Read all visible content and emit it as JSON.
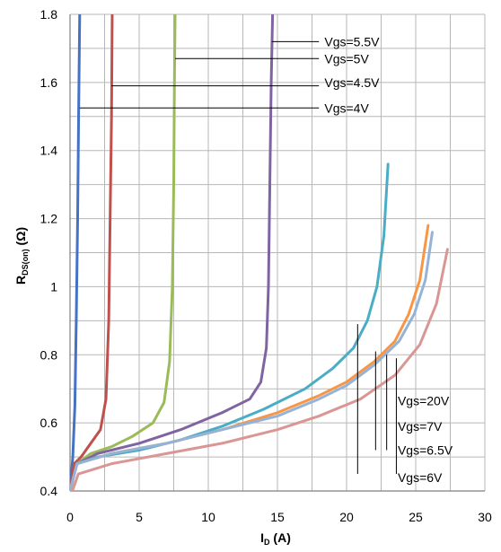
{
  "chart_data": {
    "type": "line",
    "xlabel": {
      "main": "I",
      "sub": "D",
      "suffix": " (A)"
    },
    "ylabel": {
      "main": "R",
      "sub": "DS(on)",
      "suffix": " (Ω)"
    },
    "xlim": [
      0,
      30
    ],
    "ylim": [
      0.4,
      1.8
    ],
    "x_ticks": [
      "0",
      "5",
      "10",
      "15",
      "20",
      "25",
      "30"
    ],
    "y_ticks": [
      "0.4",
      "0.6",
      "0.8",
      "1",
      "1.2",
      "1.4",
      "1.6",
      "1.8"
    ],
    "grid": true,
    "series": [
      {
        "name": "Vgs=4V",
        "color": "#4472c4",
        "points": [
          [
            0.0,
            0.4
          ],
          [
            0.2,
            0.5
          ],
          [
            0.35,
            0.65
          ],
          [
            0.45,
            0.9
          ],
          [
            0.55,
            1.2
          ],
          [
            0.62,
            1.5
          ],
          [
            0.7,
            1.8
          ]
        ]
      },
      {
        "name": "Vgs=4.5V",
        "color": "#c0504d",
        "points": [
          [
            0.0,
            0.4
          ],
          [
            0.3,
            0.48
          ],
          [
            0.8,
            0.5
          ],
          [
            1.5,
            0.54
          ],
          [
            2.2,
            0.58
          ],
          [
            2.6,
            0.67
          ],
          [
            2.8,
            0.9
          ],
          [
            2.9,
            1.2
          ],
          [
            3.0,
            1.5
          ],
          [
            3.05,
            1.8
          ]
        ]
      },
      {
        "name": "Vgs=5V",
        "color": "#9bbb59",
        "points": [
          [
            0.0,
            0.4
          ],
          [
            0.5,
            0.48
          ],
          [
            1.5,
            0.51
          ],
          [
            3.0,
            0.53
          ],
          [
            4.5,
            0.56
          ],
          [
            6.0,
            0.6
          ],
          [
            6.8,
            0.66
          ],
          [
            7.2,
            0.78
          ],
          [
            7.4,
            1.0
          ],
          [
            7.5,
            1.3
          ],
          [
            7.55,
            1.6
          ],
          [
            7.6,
            1.8
          ]
        ]
      },
      {
        "name": "Vgs=5.5V",
        "color": "#8064a2",
        "points": [
          [
            0.0,
            0.4
          ],
          [
            0.5,
            0.48
          ],
          [
            2.0,
            0.51
          ],
          [
            5.0,
            0.54
          ],
          [
            8.0,
            0.58
          ],
          [
            11.0,
            0.63
          ],
          [
            13.0,
            0.67
          ],
          [
            13.8,
            0.72
          ],
          [
            14.2,
            0.82
          ],
          [
            14.35,
            1.0
          ],
          [
            14.45,
            1.3
          ],
          [
            14.55,
            1.6
          ],
          [
            14.65,
            1.8
          ]
        ]
      },
      {
        "name": "Vgs=6V",
        "color": "#4bacc6",
        "points": [
          [
            0.0,
            0.4
          ],
          [
            0.5,
            0.48
          ],
          [
            2.0,
            0.5
          ],
          [
            5.0,
            0.52
          ],
          [
            8.0,
            0.55
          ],
          [
            11.0,
            0.59
          ],
          [
            14.0,
            0.64
          ],
          [
            17.0,
            0.7
          ],
          [
            19.0,
            0.76
          ],
          [
            20.5,
            0.82
          ],
          [
            21.5,
            0.9
          ],
          [
            22.2,
            1.0
          ],
          [
            22.7,
            1.15
          ],
          [
            23.0,
            1.36
          ]
        ]
      },
      {
        "name": "Vgs=6.5V",
        "color": "#f79646",
        "points": [
          [
            0.0,
            0.4
          ],
          [
            0.5,
            0.48
          ],
          [
            3.0,
            0.51
          ],
          [
            7.0,
            0.54
          ],
          [
            11.0,
            0.58
          ],
          [
            15.0,
            0.63
          ],
          [
            18.0,
            0.68
          ],
          [
            20.0,
            0.72
          ],
          [
            22.0,
            0.78
          ],
          [
            23.5,
            0.84
          ],
          [
            24.5,
            0.92
          ],
          [
            25.3,
            1.02
          ],
          [
            25.9,
            1.18
          ]
        ]
      },
      {
        "name": "Vgs=7V",
        "color": "#95b3d7",
        "points": [
          [
            0.0,
            0.4
          ],
          [
            0.5,
            0.48
          ],
          [
            3.0,
            0.51
          ],
          [
            7.0,
            0.54
          ],
          [
            11.0,
            0.58
          ],
          [
            15.0,
            0.62
          ],
          [
            18.0,
            0.67
          ],
          [
            20.0,
            0.71
          ],
          [
            22.0,
            0.77
          ],
          [
            23.8,
            0.84
          ],
          [
            24.9,
            0.92
          ],
          [
            25.7,
            1.02
          ],
          [
            26.2,
            1.16
          ]
        ]
      },
      {
        "name": "Vgs=20V",
        "color": "#d99694",
        "points": [
          [
            0.0,
            0.38
          ],
          [
            0.6,
            0.45
          ],
          [
            3.0,
            0.48
          ],
          [
            7.0,
            0.51
          ],
          [
            11.0,
            0.54
          ],
          [
            15.0,
            0.58
          ],
          [
            18.0,
            0.62
          ],
          [
            21.0,
            0.67
          ],
          [
            23.5,
            0.74
          ],
          [
            25.3,
            0.83
          ],
          [
            26.5,
            0.95
          ],
          [
            27.3,
            1.11
          ]
        ]
      }
    ],
    "annotations": [
      {
        "label": "Vgs=5.5V",
        "from": [
          14.6,
          1.72
        ],
        "to": [
          18.0,
          1.72
        ],
        "text_at": [
          18.4,
          1.72
        ]
      },
      {
        "label": "Vgs=5V",
        "from": [
          7.6,
          1.67
        ],
        "to": [
          18.0,
          1.67
        ],
        "text_at": [
          18.4,
          1.67
        ]
      },
      {
        "label": "Vgs=4.5V",
        "from": [
          3.0,
          1.59
        ],
        "to": [
          18.0,
          1.59
        ],
        "text_at": [
          18.4,
          1.6
        ]
      },
      {
        "label": "Vgs=4V",
        "from": [
          0.7,
          1.525
        ],
        "to": [
          18.0,
          1.525
        ],
        "text_at": [
          18.4,
          1.525
        ]
      },
      {
        "label": "Vgs=20V",
        "from": [
          23.6,
          0.79
        ],
        "to": [
          23.6,
          0.45
        ],
        "text_at": [
          23.7,
          0.665
        ]
      },
      {
        "label": "Vgs=7V",
        "from": [
          22.9,
          0.8
        ],
        "to": [
          22.9,
          0.52
        ],
        "text_at": [
          23.7,
          0.59
        ]
      },
      {
        "label": "Vgs=6.5V",
        "from": [
          22.1,
          0.81
        ],
        "to": [
          22.1,
          0.52
        ],
        "text_at": [
          23.7,
          0.52
        ]
      },
      {
        "label": "Vgs=6V",
        "from": [
          20.8,
          0.89
        ],
        "to": [
          20.8,
          0.45
        ],
        "text_at": [
          23.7,
          0.44
        ]
      }
    ]
  }
}
